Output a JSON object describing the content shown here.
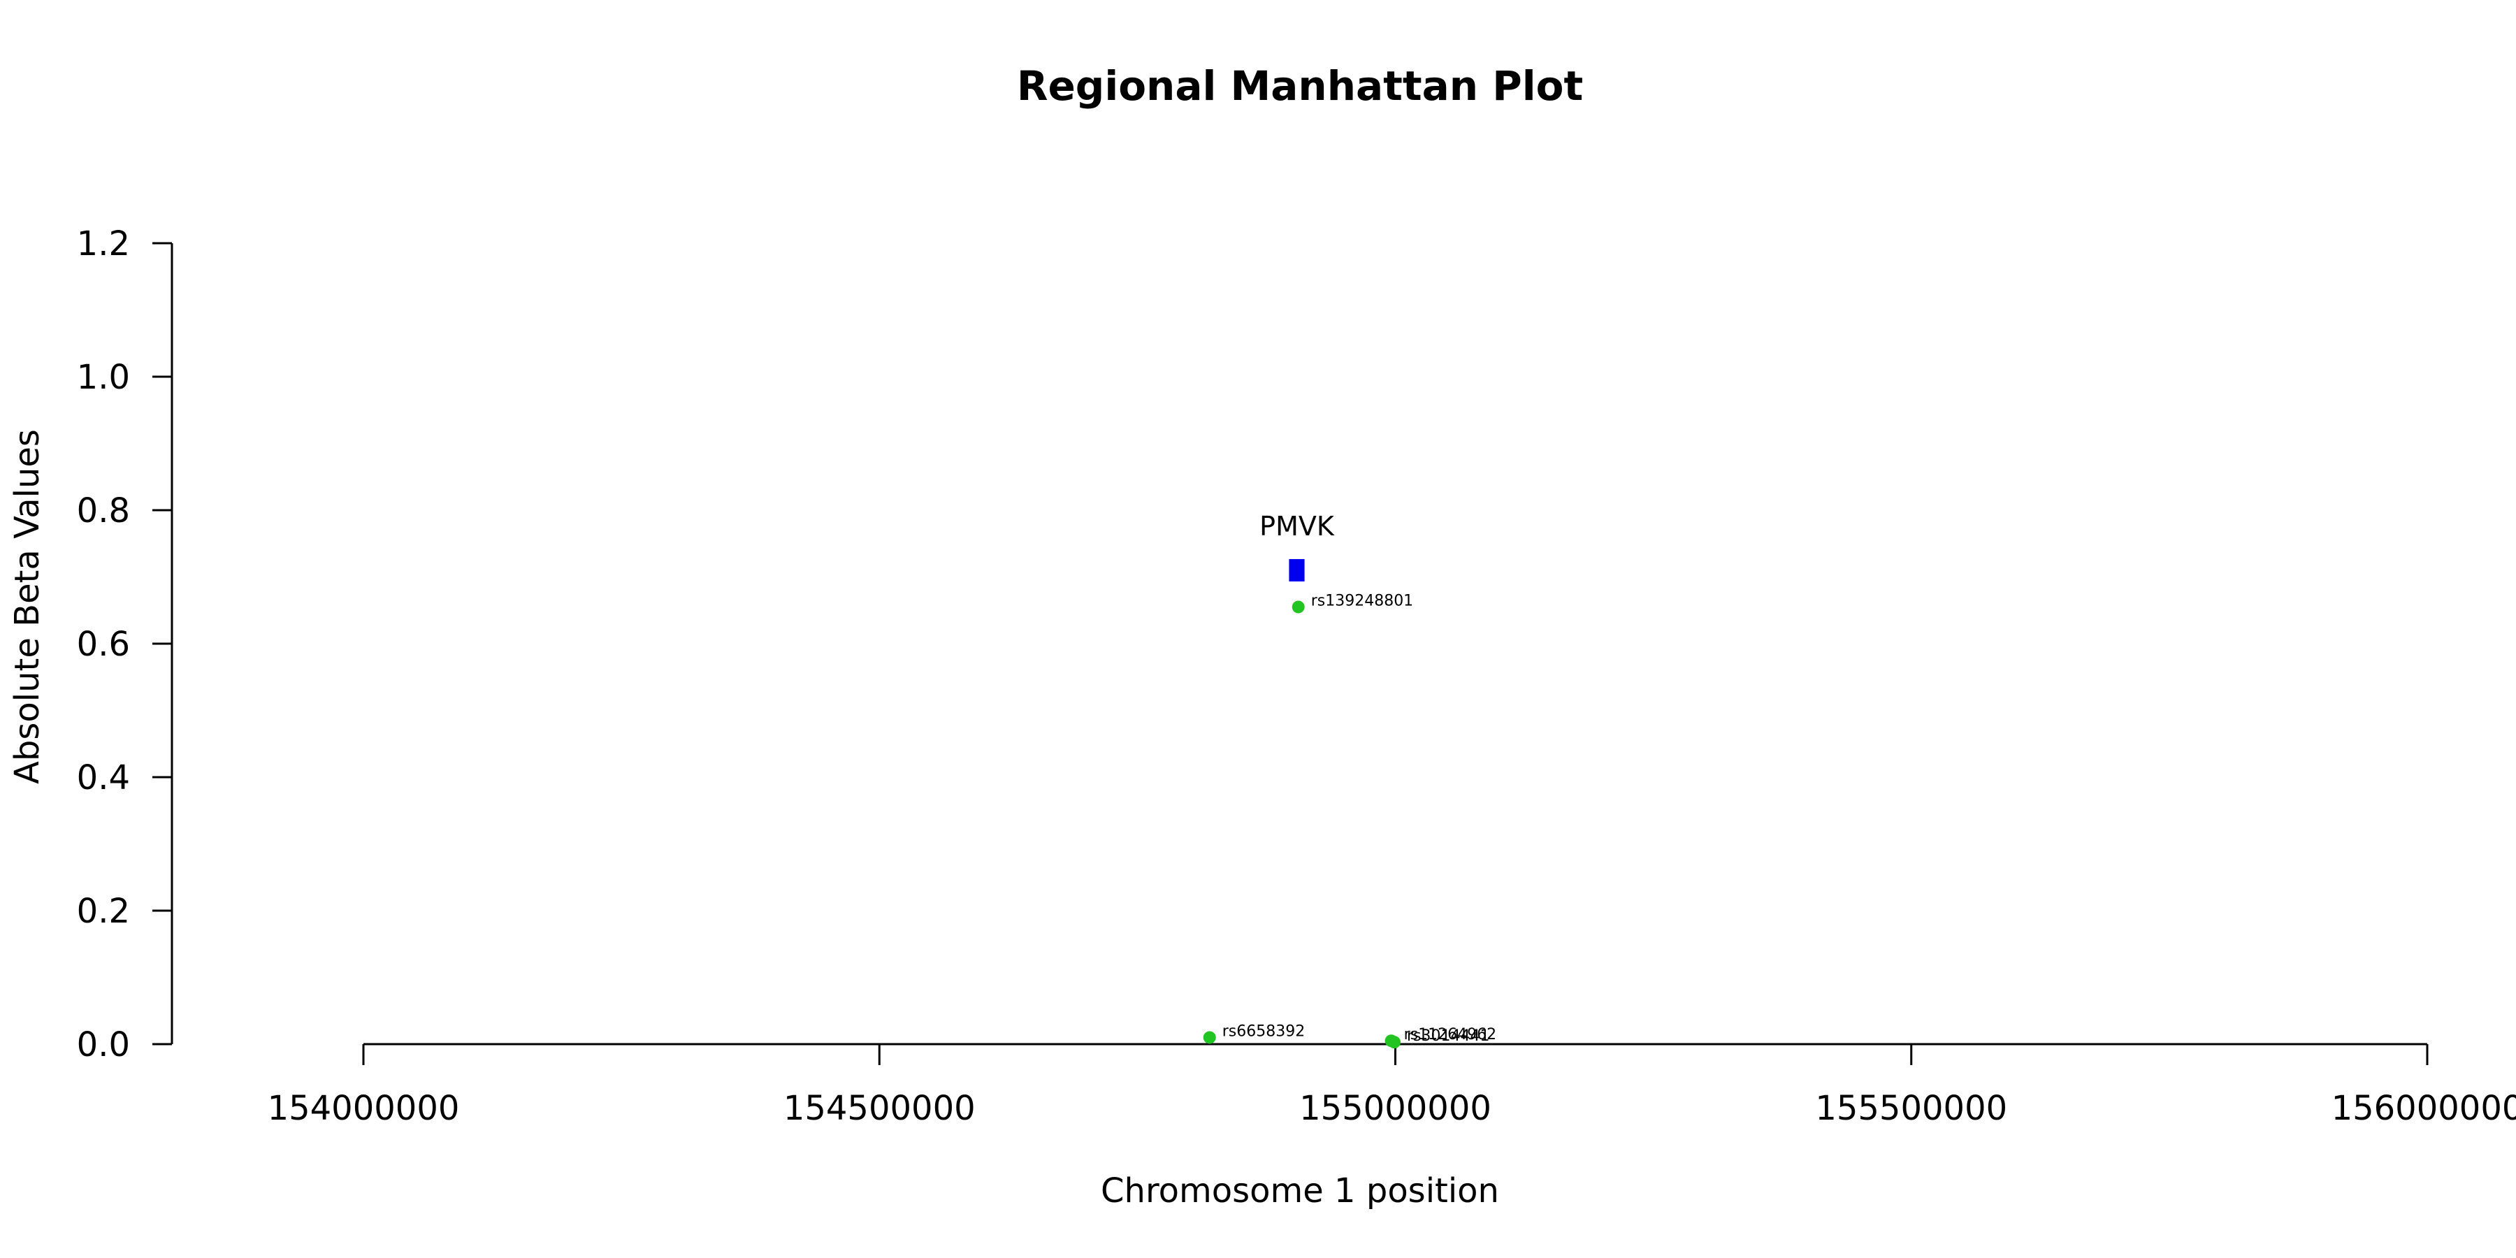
{
  "chart_data": {
    "type": "scatter",
    "title": "Regional Manhattan Plot",
    "xlabel": "Chromosome 1 position",
    "ylabel": "Absolute Beta Values",
    "xlim": [
      154000000,
      156000000
    ],
    "ylim": [
      0,
      1.2
    ],
    "x_ticks": [
      154000000,
      154500000,
      155000000,
      155500000,
      156000000
    ],
    "x_tick_labels": [
      "154000000",
      "154500000",
      "155000000",
      "155500000",
      "156000000"
    ],
    "y_ticks": [
      0.0,
      0.2,
      0.4,
      0.6,
      0.8,
      1.0,
      1.2
    ],
    "y_tick_labels": [
      "0.0",
      "0.2",
      "0.4",
      "0.6",
      "0.8",
      "1.0",
      "1.2"
    ],
    "grid": false,
    "point_color": "#22c422",
    "gene_color": "#0000ee",
    "points": [
      {
        "label": "rs139248801",
        "x": 154906000,
        "y": 0.655
      },
      {
        "label": "rs6658392",
        "x": 154820000,
        "y": 0.01
      },
      {
        "label": "rs11264962",
        "x": 154996000,
        "y": 0.005
      },
      {
        "label": "rs3014441",
        "x": 154999000,
        "y": 0.003
      }
    ],
    "genes": [
      {
        "name": "PMVK",
        "start": 154897000,
        "end": 154912000,
        "y": 0.71
      }
    ]
  }
}
